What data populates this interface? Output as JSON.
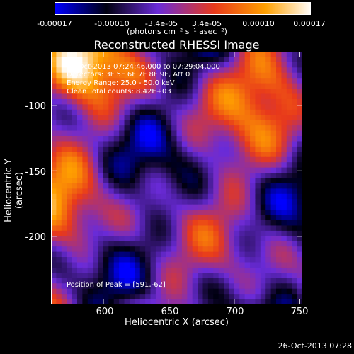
{
  "colorbar": {
    "ticks": [
      "-0.00017",
      "-0.00010",
      "-3.4e-05",
      "3.4e-05",
      "0.00010",
      "0.00017"
    ],
    "units": "(photons cm⁻² s⁻¹ asec⁻²)",
    "colors": [
      "#0000ff",
      "#000000",
      "#6a2bd8",
      "#e8391b",
      "#ffa000",
      "#ffffff"
    ]
  },
  "chart_data": {
    "type": "heatmap",
    "title": "Reconstructed RHESSI Image",
    "xlabel": "Heliocentric X (arcsec)",
    "ylabel": "Heliocentric Y (arcsec)",
    "xlim": [
      560,
      752
    ],
    "ylim": [
      -252,
      -59
    ],
    "xticks": [
      600,
      650,
      700,
      750
    ],
    "yticks": [
      -100,
      -150,
      -200
    ],
    "value_range": [
      -0.00017,
      0.00017
    ],
    "peak": [
      591,
      -62
    ]
  },
  "info": {
    "time": "25-Oct-2013 07:24:46.000 to 07:29:04.000",
    "detectors": "Detectors: 3F 5F 6F 7F 8F 9F, Att 0",
    "energy": "Energy Range: 25.0 - 50.0 keV",
    "clean": "Clean    Total counts: 8.42E+03",
    "peak_text": "Position of Peak = [591,-62]"
  },
  "datestamp": "26-Oct-2013 07:28"
}
